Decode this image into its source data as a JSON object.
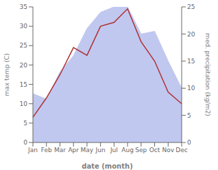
{
  "chart_data": {
    "type": "line",
    "categories": [
      "Jan",
      "Feb",
      "Mar",
      "Apr",
      "May",
      "Jun",
      "Jul",
      "Aug",
      "Sep",
      "Oct",
      "Nov",
      "Dec"
    ],
    "xlabel": "date (month)",
    "ylabel": "max temp (C)",
    "y2label": "med. precipitation (kg/m2)",
    "ylim": [
      0,
      35
    ],
    "yticks": [
      0,
      5,
      10,
      15,
      20,
      25,
      30,
      35
    ],
    "y2lim": [
      0,
      25
    ],
    "y2ticks": [
      0,
      5,
      10,
      15,
      20,
      25
    ],
    "grid": false,
    "series": [
      {
        "type": "area",
        "axis": "y2",
        "color": "#c0c8f0",
        "values": [
          9.0,
          8.0,
          13.0,
          16.0,
          21.0,
          24.0,
          25.0,
          25.0,
          20.0,
          20.5,
          15.0,
          10.0
        ]
      },
      {
        "type": "line",
        "color": "#b03030",
        "values": [
          6.5,
          11.5,
          17.5,
          24.5,
          22.5,
          30.0,
          31.0,
          34.5,
          26.0,
          21.0,
          13.0,
          10.0
        ]
      }
    ]
  }
}
